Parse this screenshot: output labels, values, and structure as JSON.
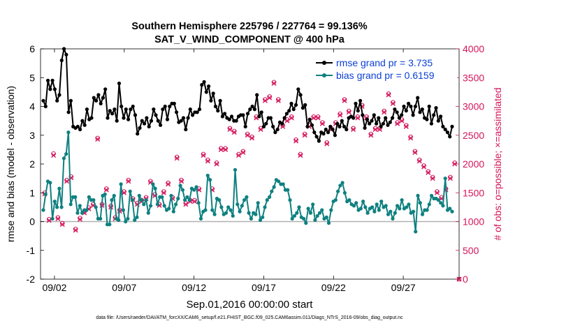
{
  "chart_data": {
    "type": "line",
    "title": "Southern Hemisphere 225796 / 227764 = 99.136%",
    "subtitle": "SAT_V_WIND_COMPONENT @ 400 hPa",
    "ylabel_left": "rmse and bias (model - observation)",
    "ylabel_right": "# of obs: o=possible; ×=assimilated",
    "xlabel": "Sep.01,2016 00:00:00 start",
    "footnote": "data file: /Users/raeder/DAI/ATM_forcXX/CAM6_setup/f.e21.FHIST_BGC.f09_025.CAM6assim.011/Diags_NTrS_2016-09/obs_diag_output.nc",
    "x_ticks": [
      {
        "day": 2,
        "label": "09/02"
      },
      {
        "day": 7,
        "label": "09/07"
      },
      {
        "day": 12,
        "label": "09/12"
      },
      {
        "day": 17,
        "label": "09/17"
      },
      {
        "day": 22,
        "label": "09/22"
      },
      {
        "day": 27,
        "label": "09/27"
      }
    ],
    "xlim": [
      1,
      31
    ],
    "ylim_left": [
      -2,
      6
    ],
    "ylim_right": [
      0,
      4000
    ],
    "y_ticks_left": [
      "-2",
      "-1",
      "0",
      "1",
      "2",
      "3",
      "4",
      "5",
      "6"
    ],
    "y_ticks_right": [
      "0",
      "500",
      "1000",
      "1500",
      "2000",
      "2500",
      "3000",
      "3500",
      "4000"
    ],
    "legend_position": "top-right",
    "colors": {
      "rmse": "#000000",
      "bias": "#0f8080",
      "obs": "#d4145a",
      "legend_text": "#0b3fd6",
      "zero_line": "#b0b0b0"
    },
    "series": [
      {
        "name": "rmse grand pr = 3.735",
        "axis": "left",
        "values": [
          4.2,
          4.0,
          4.9,
          4.6,
          4.9,
          4.6,
          4.2,
          4.4,
          5.6,
          6.0,
          5.8,
          3.8,
          4.2,
          3.3,
          3.25,
          3.3,
          3.2,
          3.5,
          3.35,
          3.9,
          3.55,
          3.6,
          4.3,
          4.2,
          4.4,
          4.1,
          4.3,
          4.6,
          3.6,
          3.85,
          3.75,
          3.9,
          3.5,
          4.8,
          4.0,
          3.6,
          3.9,
          3.55,
          3.9,
          4.0,
          3.7,
          3.05,
          3.25,
          3.5,
          3.4,
          3.6,
          3.3,
          3.5,
          3.9,
          3.7,
          3.5,
          3.35,
          3.9,
          4.0,
          3.55,
          4.0,
          4.1,
          4.1,
          3.8,
          3.45,
          3.5,
          3.6,
          3.2,
          3.6,
          3.9,
          3.7,
          3.8,
          3.8,
          3.9,
          4.75,
          4.85,
          4.5,
          4.7,
          4.2,
          4.45,
          4.0,
          3.85,
          4.2,
          3.65,
          3.75,
          3.6,
          3.55,
          3.65,
          3.5,
          3.5,
          3.65,
          3.7,
          3.7,
          3.3,
          3.75,
          3.9,
          4.0,
          3.9,
          4.4,
          3.65,
          3.8,
          3.3,
          3.4,
          3.6,
          3.6,
          3.3,
          3.1,
          3.2,
          3.45,
          3.4,
          3.6,
          3.75,
          3.85,
          4.1,
          3.9,
          4.05,
          4.6,
          4.4,
          3.95,
          4.05,
          3.3,
          3.55,
          3.35,
          3.1,
          2.95,
          2.8,
          3.1,
          3.05,
          3.2,
          3.1,
          3.3,
          3.2,
          3.0,
          3.4,
          3.3,
          3.5,
          3.3,
          3.2,
          3.6,
          3.65,
          3.6,
          4.1,
          3.85,
          4.2,
          3.7,
          3.25,
          3.55,
          3.4,
          3.5,
          3.7,
          3.4,
          3.6,
          3.3,
          3.4,
          3.6,
          3.35,
          3.45,
          3.6,
          3.9,
          3.8,
          3.6,
          3.7,
          4.0,
          3.85,
          4.1,
          4.0,
          3.7,
          4.0,
          4.3,
          3.8,
          3.9,
          3.6,
          3.55,
          4.0,
          3.4,
          3.7,
          3.95,
          3.5,
          3.65,
          3.3,
          3.2,
          3.1,
          2.95,
          3.3
        ]
      },
      {
        "name": "bias grand pr = 0.6159",
        "axis": "left",
        "values": [
          0.4,
          0.95,
          1.4,
          1.35,
          0.1,
          0.7,
          0.5,
          1.15,
          0.5,
          2.2,
          2.35,
          3.1,
          0.6,
          0.85,
          0.85,
          0.3,
          0.55,
          0.3,
          0.4,
          0.4,
          0.85,
          0.75,
          0.75,
          0.5,
          0.1,
          0.1,
          0.9,
          0.95,
          -0.1,
          -0.1,
          0.75,
          0.9,
          0.1,
          0.05,
          1.3,
          0.4,
          0.0,
          0.1,
          1.05,
          0.75,
          0.05,
          0.15,
          0.9,
          0.75,
          0.6,
          0.75,
          0.3,
          0.55,
          1.3,
          1.15,
          0.6,
          0.85,
          0.85,
          0.55,
          0.4,
          0.45,
          0.9,
          0.35,
          0.6,
          0.8,
          1.25,
          1.1,
          0.75,
          0.85,
          0.75,
          1.15,
          1.1,
          1.2,
          0.65,
          0.1,
          0.35,
          0.4,
          1.6,
          1.45,
          0.4,
          0.25,
          0.8,
          0.75,
          0.5,
          0.25,
          0.3,
          0.5,
          0.4,
          0.2,
          1.8,
          0.6,
          0.35,
          0.55,
          0.75,
          0.85,
          0.3,
          0.1,
          0.3,
          0.25,
          0.65,
          0.05,
          0.15,
          0.5,
          0.75,
          0.85,
          1.05,
          1.2,
          1.45,
          1.4,
          1.3,
          1.3,
          1.1,
          1.1,
          0.75,
          0.1,
          0.2,
          0.3,
          0.5,
          0.15,
          0.1,
          -0.05,
          0.45,
          0.3,
          0.6,
          0.05,
          0.2,
          0.3,
          0.4,
          0.1,
          0.15,
          -0.05,
          0.4,
          0.7,
          0.75,
          1.05,
          1.25,
          1.35,
          1.0,
          0.7,
          0.75,
          0.6,
          0.55,
          0.65,
          0.4,
          0.45,
          0.7,
          0.5,
          0.3,
          0.45,
          0.5,
          0.35,
          0.6,
          0.4,
          0.7,
          0.5,
          0.55,
          0.25,
          0.35,
          0.1,
          0.3,
          0.55,
          0.45,
          0.75,
          0.45,
          0.5,
          0.6,
          0.3,
          0.35,
          -0.35,
          0.9,
          0.65,
          0.25,
          0.4,
          0.4,
          0.6,
          0.9,
          0.8,
          0.8,
          0.75,
          0.65,
          0.55,
          1.5,
          0.4,
          0.45,
          0.35
        ]
      }
    ],
    "obs_assimilated": {
      "axis": "right",
      "values": [
        1480,
        1500,
        1020,
        1000,
        2150,
        2100,
        1050,
        1000,
        950,
        1150,
        1700,
        1720,
        1760,
        800,
        850,
        900,
        1040,
        1120,
        1150,
        1280,
        1220,
        1350,
        1280,
        1150,
        2430,
        1250,
        1280,
        1750,
        1550,
        1400,
        1250,
        1200,
        1050,
        1100,
        1180,
        1300,
        1500,
        1850,
        1700,
        1550,
        1380,
        1200,
        1300,
        1340,
        1350,
        1400,
        1400,
        1550,
        1680,
        1650,
        1450,
        1300,
        1280,
        1370,
        1500,
        1550,
        1650,
        1700,
        1400,
        1450,
        2100,
        1850,
        1700,
        1350,
        1300,
        1430,
        1350,
        1240,
        1350,
        1650,
        1550,
        1600,
        2150,
        2200,
        2050,
        1750,
        1550,
        1600,
        2000,
        1700,
        2250,
        2350,
        2250,
        2450,
        2600,
        2600,
        2550,
        2350,
        2150,
        2100,
        2200,
        2350,
        2500,
        2350,
        2450,
        2550,
        2800,
        2750,
        2600,
        2700,
        3100,
        3200,
        3150,
        3350,
        3400,
        3250,
        3100,
        2500,
        2650,
        2950,
        2750,
        2950,
        2800,
        2500,
        2400,
        2100,
        2150,
        2300,
        2500,
        2550,
        2650,
        2600,
        2800,
        2900,
        2800,
        2900,
        2700,
        2400,
        2350,
        2500,
        2600,
        2650,
        2700,
        2750,
        2850,
        2900,
        3100,
        3050,
        2900,
        2800,
        2600,
        2700,
        2800,
        2950,
        3000,
        3000,
        2800,
        2600,
        2500,
        2550,
        2600,
        2650,
        2600,
        2700,
        2900,
        3050,
        3200,
        3100,
        3050,
        2900,
        2700,
        2600,
        2750,
        2800,
        2650,
        2550,
        2450,
        2300,
        2200,
        2100,
        2050,
        2000,
        1950,
        1900,
        1850,
        1800,
        1750,
        1650,
        1500,
        1450,
        1400,
        1500,
        1550,
        1600,
        1750,
        1900,
        2000,
        2050,
        0
      ]
    },
    "obs_possible": {
      "axis": "right",
      "values": [
        1500,
        1520,
        1040,
        1020,
        2180,
        2120,
        1070,
        1020,
        970,
        1170,
        1720,
        1740,
        1780,
        820,
        870,
        920,
        1060,
        1140,
        1170,
        1300,
        1240,
        1370,
        1300,
        1170,
        2450,
        1270,
        1300,
        1770,
        1570,
        1420,
        1270,
        1220,
        1070,
        1120,
        1200,
        1320,
        1520,
        1870,
        1720,
        1570,
        1400,
        1220,
        1320,
        1360,
        1370,
        1420,
        1420,
        1570,
        1700,
        1670,
        1470,
        1320,
        1300,
        1390,
        1520,
        1570,
        1670,
        1720,
        1420,
        1470,
        2120,
        1870,
        1720,
        1370,
        1320,
        1450,
        1370,
        1260,
        1370,
        1670,
        1570,
        1620,
        2170,
        2220,
        2070,
        1770,
        1570,
        1620,
        2020,
        1720,
        2270,
        2370,
        2270,
        2470,
        2620,
        2620,
        2570,
        2370,
        2170,
        2120,
        2220,
        2370,
        2520,
        2370,
        2470,
        2570,
        2820,
        2770,
        2620,
        2720,
        3120,
        3220,
        3170,
        3370,
        3420,
        3270,
        3120,
        2520,
        2670,
        2970,
        2770,
        2970,
        2820,
        2520,
        2420,
        2120,
        2170,
        2320,
        2520,
        2570,
        2670,
        2620,
        2820,
        2920,
        2820,
        2920,
        2720,
        2420,
        2370,
        2520,
        2620,
        2670,
        2720,
        2770,
        2870,
        2920,
        3120,
        3070,
        2920,
        2820,
        2620,
        2720,
        2820,
        2970,
        3020,
        3020,
        2820,
        2620,
        2520,
        2570,
        2620,
        2670,
        2620,
        2720,
        2920,
        3070,
        3220,
        3120,
        3070,
        2920,
        2720,
        2620,
        2770,
        2820,
        2670,
        2570,
        2470,
        2320,
        2220,
        2120,
        2070,
        2020,
        1970,
        1920,
        1870,
        1820,
        1770,
        1670,
        1520,
        1470,
        1420,
        1520,
        1570,
        1620,
        1770,
        1920,
        2020,
        2070,
        0
      ]
    }
  }
}
